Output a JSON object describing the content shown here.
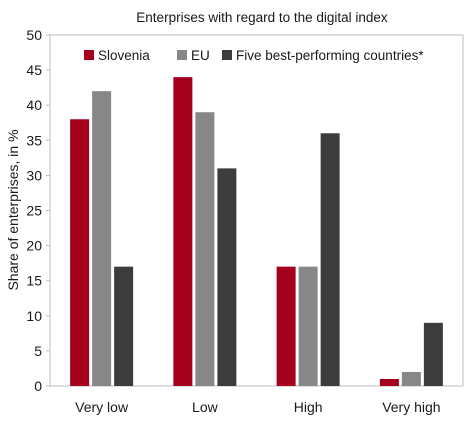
{
  "chart_data": {
    "type": "bar",
    "title": "Enterprises with regard to the digital index",
    "xlabel": "",
    "ylabel": "Share of enterprises, in %",
    "ylim": [
      0,
      50
    ],
    "yticks": [
      0,
      5,
      10,
      15,
      20,
      25,
      30,
      35,
      40,
      45,
      50
    ],
    "grid": false,
    "legend_position": "top",
    "categories": [
      "Very low",
      "Low",
      "High",
      "Very high"
    ],
    "series": [
      {
        "name": "Slovenia",
        "color": "#a6001f",
        "values": [
          38,
          44,
          17,
          1
        ]
      },
      {
        "name": "EU",
        "color": "#878787",
        "values": [
          42,
          39,
          17,
          2
        ]
      },
      {
        "name": "Five best-performing countries*",
        "color": "#3c3c3c",
        "values": [
          17,
          31,
          36,
          9
        ]
      }
    ]
  }
}
